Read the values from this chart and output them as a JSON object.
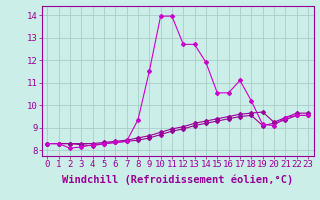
{
  "xlabel": "Windchill (Refroidissement éolien,°C)",
  "xlim": [
    -0.5,
    23.5
  ],
  "ylim": [
    7.75,
    14.4
  ],
  "xticks": [
    0,
    1,
    2,
    3,
    4,
    5,
    6,
    7,
    8,
    9,
    10,
    11,
    12,
    13,
    14,
    15,
    16,
    17,
    18,
    19,
    20,
    21,
    22,
    23
  ],
  "yticks": [
    8,
    9,
    10,
    11,
    12,
    13,
    14
  ],
  "bg_color": "#cceee8",
  "line_color": "#990099",
  "line_color2": "#cc00cc",
  "line1_x": [
    0,
    1,
    2,
    3,
    4,
    5,
    6,
    7,
    8,
    9,
    10,
    11,
    12,
    13,
    14,
    15,
    16,
    17,
    18,
    19,
    20,
    21,
    22,
    23
  ],
  "line1_y": [
    8.3,
    8.3,
    8.3,
    8.25,
    8.2,
    8.3,
    8.35,
    8.4,
    8.45,
    8.55,
    8.7,
    8.85,
    8.95,
    9.1,
    9.2,
    9.3,
    9.4,
    9.5,
    9.55,
    9.1,
    9.2,
    9.35,
    9.55,
    9.55
  ],
  "line2_x": [
    0,
    1,
    2,
    3,
    4,
    5,
    6,
    7,
    8,
    9,
    10,
    11,
    12,
    13,
    14,
    15,
    16,
    17,
    18,
    19,
    20,
    21,
    22,
    23
  ],
  "line2_y": [
    8.3,
    8.3,
    8.1,
    8.15,
    8.25,
    8.3,
    8.35,
    8.4,
    9.35,
    11.5,
    13.95,
    13.95,
    12.7,
    12.7,
    11.9,
    10.55,
    10.55,
    11.1,
    10.2,
    9.15,
    9.1,
    9.45,
    9.55,
    9.55
  ],
  "line3_x": [
    0,
    1,
    2,
    3,
    4,
    5,
    6,
    7,
    8,
    9,
    10,
    11,
    12,
    13,
    14,
    15,
    16,
    17,
    18,
    19,
    20,
    21,
    22,
    23
  ],
  "line3_y": [
    8.3,
    8.3,
    8.3,
    8.3,
    8.3,
    8.35,
    8.4,
    8.45,
    8.55,
    8.65,
    8.8,
    8.95,
    9.05,
    9.2,
    9.3,
    9.4,
    9.5,
    9.6,
    9.65,
    9.7,
    9.25,
    9.45,
    9.65,
    9.65
  ],
  "tick_fontsize": 6.5,
  "label_fontsize": 7.5
}
